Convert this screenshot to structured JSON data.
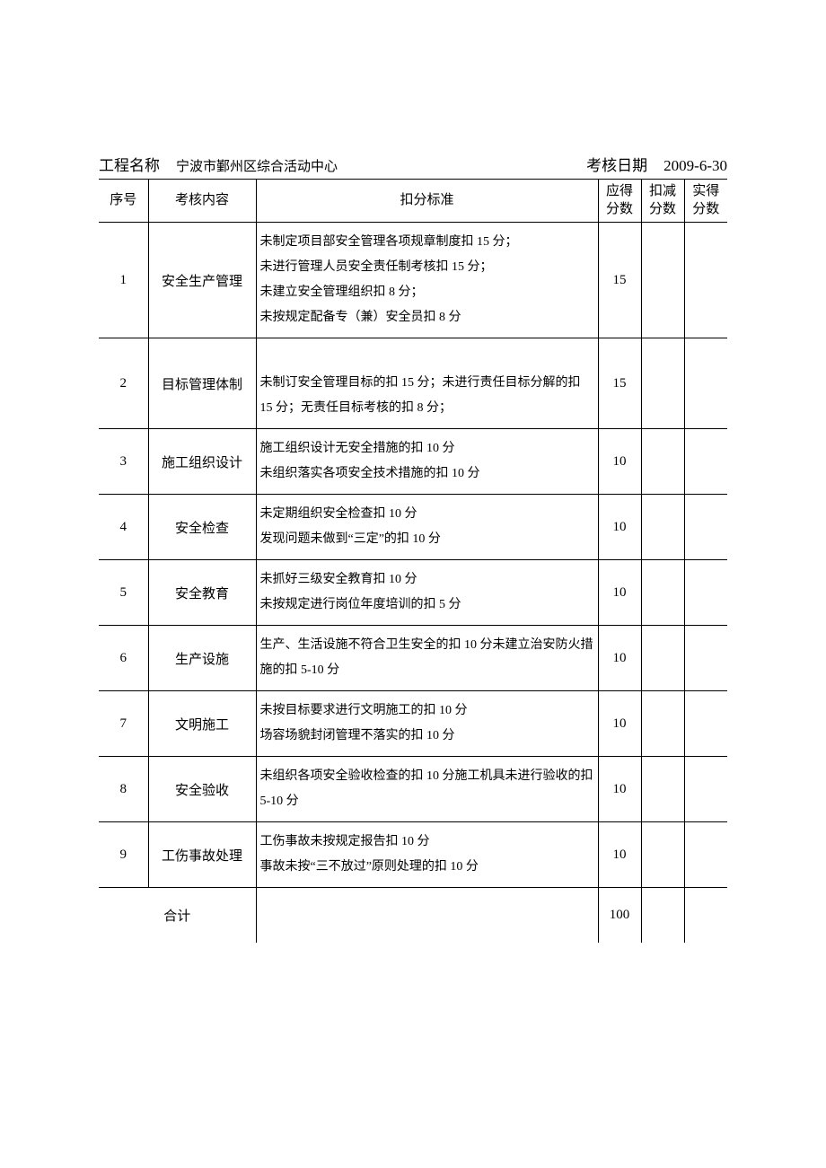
{
  "header": {
    "project_label": "工程名称",
    "project_value": "宁波市鄞州区综合活动中心",
    "date_label": "考核日期",
    "date_value": "2009-6-30"
  },
  "columns": {
    "seq": "序号",
    "item": "考核内容",
    "criteria": "扣分标准",
    "score": "应得分数",
    "deduct": "扣减分数",
    "actual": "实得分数"
  },
  "rows": [
    {
      "seq": "1",
      "item": "安全生产管理",
      "criteria": [
        "未制定项目部安全管理各项规章制度扣 15 分；",
        "未进行管理人员安全责任制考核扣 15 分；",
        "未建立安全管理组织扣 8 分；",
        "未按规定配备专（兼）安全员扣 8 分"
      ],
      "score": "15",
      "deduct": "",
      "actual": ""
    },
    {
      "seq": "2",
      "item": "目标管理体制",
      "criteria": [
        "",
        "未制订安全管理目标的扣 15 分；未进行责任目标分解的扣 15 分；无责任目标考核的扣 8 分；"
      ],
      "score": "15",
      "deduct": "",
      "actual": ""
    },
    {
      "seq": "3",
      "item": "施工组织设计",
      "criteria": [
        "施工组织设计无安全措施的扣 10 分",
        "未组织落实各项安全技术措施的扣 10 分"
      ],
      "score": "10",
      "deduct": "",
      "actual": ""
    },
    {
      "seq": "4",
      "item": "安全检查",
      "criteria": [
        "未定期组织安全检查扣 10 分",
        "发现问题未做到“三定”的扣 10 分"
      ],
      "score": "10",
      "deduct": "",
      "actual": ""
    },
    {
      "seq": "5",
      "item": "安全教育",
      "criteria": [
        "未抓好三级安全教育扣 10 分",
        "未按规定进行岗位年度培训的扣 5 分"
      ],
      "score": "10",
      "deduct": "",
      "actual": ""
    },
    {
      "seq": "6",
      "item": "生产设施",
      "criteria": [
        "生产、生活设施不符合卫生安全的扣 10 分未建立治安防火措施的扣 5-10 分"
      ],
      "score": "10",
      "deduct": "",
      "actual": ""
    },
    {
      "seq": "7",
      "item": "文明施工",
      "criteria": [
        "未按目标要求进行文明施工的扣 10 分",
        "场容场貌封闭管理不落实的扣 10 分"
      ],
      "score": "10",
      "deduct": "",
      "actual": ""
    },
    {
      "seq": "8",
      "item": "安全验收",
      "criteria": [
        "未组织各项安全验收检查的扣 10 分施工机具未进行验收的扣 5-10 分"
      ],
      "score": "10",
      "deduct": "",
      "actual": ""
    },
    {
      "seq": "9",
      "item": "工伤事故处理",
      "criteria": [
        "工伤事故未按规定报告扣 10 分",
        "事故未按“三不放过”原则处理的扣 10 分"
      ],
      "score": "10",
      "deduct": "",
      "actual": ""
    }
  ],
  "total": {
    "label": "合计",
    "score": "100",
    "deduct": "",
    "actual": ""
  }
}
